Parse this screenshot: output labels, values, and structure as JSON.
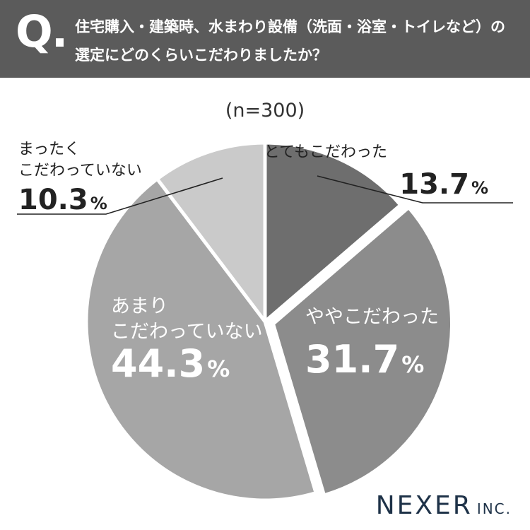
{
  "question": {
    "mark": "Q.",
    "line1": "住宅購入・建築時、水まわり設備（洗面・浴室・トイレなど）の",
    "line2": "選定にどのくらいこだわりましたか？"
  },
  "sample": "(n=300)",
  "brand": {
    "main": "NEXER",
    "sub": "INC."
  },
  "chart_data": {
    "type": "pie",
    "title": "住宅購入・建築時、水まわり設備（洗面・浴室・トイレなど）の選定にどのくらいこだわりましたか？",
    "n": 300,
    "start": "12 o'clock",
    "direction": "clockwise",
    "slices": [
      {
        "label": "とてもこだわった",
        "value": 13.7,
        "display": "13.7",
        "color": "#6e6e6e",
        "exploded": false
      },
      {
        "label": "ややこだわった",
        "value": 31.7,
        "display": "31.7",
        "color": "#8c8c8c",
        "exploded": true
      },
      {
        "label": "あまりこだわっていない",
        "value": 44.3,
        "display": "44.3",
        "color": "#a6a6a6",
        "exploded": false
      },
      {
        "label": "まったくこだわっていない",
        "value": 10.3,
        "display": "10.3",
        "color": "#cacaca",
        "exploded": false
      }
    ],
    "unit": "%"
  }
}
